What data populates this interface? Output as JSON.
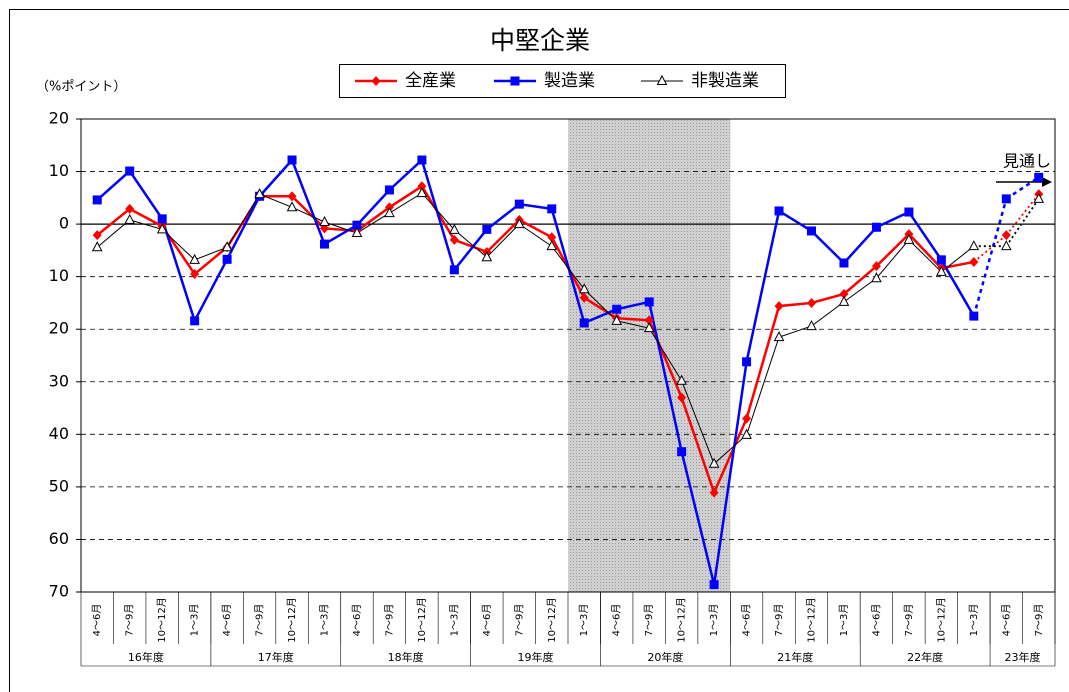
{
  "chart_data": {
    "type": "line",
    "title": "中堅企業",
    "y_axis_label": "（%ポイント）",
    "annotation": "見通し",
    "categories": [
      "4～6月",
      "7～9月",
      "10～12月",
      "1～3月",
      "4～6月",
      "7～9月",
      "10～12月",
      "1～3月",
      "4～6月",
      "7～9月",
      "10～12月",
      "1～3月",
      "4～6月",
      "7～9月",
      "10～12月",
      "1～3月",
      "4～6月",
      "7～9月",
      "10～12月",
      "1～3月",
      "4～6月",
      "7～9月",
      "10～12月",
      "1～3月",
      "4～6月",
      "7～9月",
      "10～12月",
      "1～3月",
      "4～6月",
      "7～9月"
    ],
    "category_groups": [
      {
        "label": "16年度",
        "size": 4
      },
      {
        "label": "17年度",
        "size": 4
      },
      {
        "label": "18年度",
        "size": 4
      },
      {
        "label": "19年度",
        "size": 4
      },
      {
        "label": "20年度",
        "size": 4
      },
      {
        "label": "21年度",
        "size": 4
      },
      {
        "label": "22年度",
        "size": 4
      },
      {
        "label": "23年度",
        "size": 2
      }
    ],
    "shaded_range": [
      15,
      19
    ],
    "forecast_from_index": 28,
    "series": [
      {
        "name": "全産業",
        "color": "#ff0000",
        "marker": "diamond",
        "values": [
          -2.1,
          2.9,
          -0.4,
          -9.5,
          -4.4,
          5.3,
          5.3,
          -0.8,
          -1.3,
          3.2,
          7.2,
          -3,
          -5.3,
          0.8,
          -2.5,
          -14,
          -17.9,
          -18.3,
          -33,
          -51.1,
          -37,
          -15.6,
          -15,
          -13.3,
          -8,
          -1.9,
          -8.4,
          -7.2,
          -2.1,
          5.7
        ]
      },
      {
        "name": "製造業",
        "color": "#0000ff",
        "marker": "square",
        "values": [
          4.6,
          10.1,
          1,
          -18.4,
          -6.7,
          5.3,
          12.2,
          -3.8,
          -0.2,
          6.5,
          12.2,
          -8.7,
          -1,
          3.8,
          2.9,
          -18.8,
          -16.2,
          -14.8,
          -43.3,
          -68.6,
          -26.2,
          2.5,
          -1.3,
          -7.4,
          -0.6,
          2.3,
          -6.8,
          -17.5,
          4.8,
          8.9
        ]
      },
      {
        "name": "非製造業",
        "color": "#000000",
        "marker": "triangle",
        "values": [
          -4.4,
          0.8,
          -1,
          -6.8,
          -4.4,
          5.7,
          3.2,
          0.4,
          -1.7,
          2.1,
          5.9,
          -1.1,
          -6.3,
          0,
          -4.2,
          -12.4,
          -18.4,
          -19.8,
          -29.8,
          -45.6,
          -40.1,
          -21.5,
          -19.4,
          -14.8,
          -10.3,
          -3,
          -9.1,
          -4.2,
          -4.2,
          4.8
        ]
      }
    ],
    "ylim": [
      -70,
      20
    ],
    "yticks": [
      20,
      10,
      0,
      {
        "value": -10,
        "label": "10"
      },
      {
        "value": -20,
        "label": "20"
      },
      {
        "value": -30,
        "label": "30"
      },
      {
        "value": -40,
        "label": "40"
      },
      {
        "value": -50,
        "label": "50"
      },
      {
        "value": -60,
        "label": "60"
      },
      {
        "value": -70,
        "label": "70"
      }
    ],
    "grid": true
  }
}
